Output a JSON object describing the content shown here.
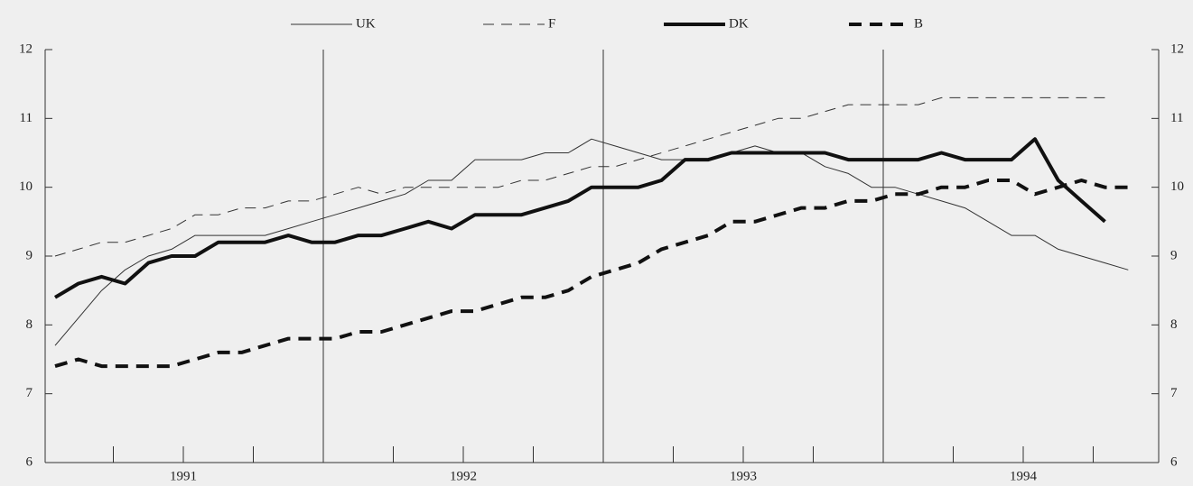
{
  "chart_data": {
    "type": "line",
    "x": [
      1991.042,
      1991.125,
      1991.208,
      1991.292,
      1991.375,
      1991.458,
      1991.542,
      1991.625,
      1991.708,
      1991.792,
      1991.875,
      1991.958,
      1992.042,
      1992.125,
      1992.208,
      1992.292,
      1992.375,
      1992.458,
      1992.542,
      1992.625,
      1992.708,
      1992.792,
      1992.875,
      1992.958,
      1993.042,
      1993.125,
      1993.208,
      1993.292,
      1993.375,
      1993.458,
      1993.542,
      1993.625,
      1993.708,
      1993.792,
      1993.875,
      1993.958,
      1994.042,
      1994.125,
      1994.208,
      1994.292,
      1994.375,
      1994.458,
      1994.542,
      1994.625,
      1994.708,
      1994.792,
      1994.875
    ],
    "series": [
      {
        "name": "UK",
        "color": "#333333",
        "width": 1,
        "dash": "none",
        "values": [
          7.7,
          8.1,
          8.5,
          8.8,
          9.0,
          9.1,
          9.3,
          9.3,
          9.3,
          9.3,
          9.4,
          9.5,
          9.6,
          9.7,
          9.8,
          9.9,
          10.1,
          10.1,
          10.4,
          10.4,
          10.4,
          10.5,
          10.5,
          10.7,
          10.6,
          10.5,
          10.4,
          10.4,
          10.4,
          10.5,
          10.6,
          10.5,
          10.5,
          10.3,
          10.2,
          10.0,
          10.0,
          9.9,
          9.8,
          9.7,
          9.5,
          9.3,
          9.3,
          9.1,
          9.0,
          8.9,
          8.8
        ]
      },
      {
        "name": "F",
        "color": "#333333",
        "width": 1,
        "dash": "12 8",
        "values": [
          9.0,
          9.1,
          9.2,
          9.2,
          9.3,
          9.4,
          9.6,
          9.6,
          9.7,
          9.7,
          9.8,
          9.8,
          9.9,
          10.0,
          9.9,
          10.0,
          10.0,
          10.0,
          10.0,
          10.0,
          10.1,
          10.1,
          10.2,
          10.3,
          10.3,
          10.4,
          10.5,
          10.6,
          10.7,
          10.8,
          10.9,
          11.0,
          11.0,
          11.1,
          11.2,
          11.2,
          11.2,
          11.2,
          11.3,
          11.3,
          11.3,
          11.3,
          11.3,
          11.3,
          11.3,
          11.3,
          null
        ]
      },
      {
        "name": "DK",
        "color": "#111111",
        "width": 4,
        "dash": "none",
        "values": [
          8.4,
          8.6,
          8.7,
          8.6,
          8.9,
          9.0,
          9.0,
          9.2,
          9.2,
          9.2,
          9.3,
          9.2,
          9.2,
          9.3,
          9.3,
          9.4,
          9.5,
          9.4,
          9.6,
          9.6,
          9.6,
          9.7,
          9.8,
          10.0,
          10.0,
          10.0,
          10.1,
          10.4,
          10.4,
          10.5,
          10.5,
          10.5,
          10.5,
          10.5,
          10.4,
          10.4,
          10.4,
          10.4,
          10.5,
          10.4,
          10.4,
          10.4,
          10.7,
          10.1,
          9.8,
          9.5,
          null
        ]
      },
      {
        "name": "B",
        "color": "#111111",
        "width": 4,
        "dash": "14 9",
        "values": [
          7.4,
          7.5,
          7.4,
          7.4,
          7.4,
          7.4,
          7.5,
          7.6,
          7.6,
          7.7,
          7.8,
          7.8,
          7.8,
          7.9,
          7.9,
          8.0,
          8.1,
          8.2,
          8.2,
          8.3,
          8.4,
          8.4,
          8.5,
          8.7,
          8.8,
          8.9,
          9.1,
          9.2,
          9.3,
          9.5,
          9.5,
          9.6,
          9.7,
          9.7,
          9.8,
          9.8,
          9.9,
          9.9,
          10.0,
          10.0,
          10.1,
          10.1,
          9.9,
          10.0,
          10.1,
          10.0,
          10.0
        ]
      }
    ],
    "xlim": [
      1991,
      1995
    ],
    "xticks": [
      {
        "value": 1991.5,
        "label": "1991"
      },
      {
        "value": 1992.5,
        "label": "1992"
      },
      {
        "value": 1993.5,
        "label": "1993"
      },
      {
        "value": 1994.5,
        "label": "1994"
      }
    ],
    "xminorticks": [
      1991.25,
      1991.5,
      1991.75,
      1992.25,
      1992.5,
      1992.75,
      1993.25,
      1993.5,
      1993.75,
      1994.25,
      1994.5,
      1994.75
    ],
    "vlines": [
      1992,
      1993,
      1994
    ],
    "ylim": [
      6,
      12
    ],
    "yticks": [
      6,
      7,
      8,
      9,
      10,
      11,
      12
    ],
    "y2lim": [
      6,
      12
    ],
    "y2ticks": [
      6,
      7,
      8,
      9,
      10,
      11,
      12
    ],
    "legend": "top"
  }
}
